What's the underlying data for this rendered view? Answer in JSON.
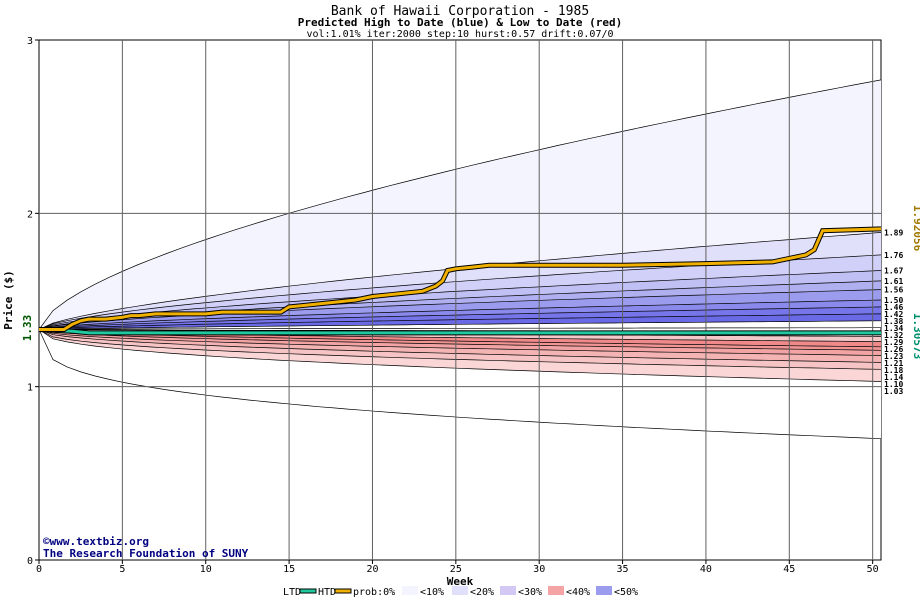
{
  "chart_data": {
    "type": "area",
    "title": "Bank of Hawaii Corporation - 1985",
    "subtitle": "Predicted High to Date (blue) &  Low to Date (red)",
    "params": "vol:1.01% iter:2000 step:10 hurst:0.57 drift:0.07/0",
    "xlabel": "Week",
    "ylabel": "Price ($)",
    "xlim": [
      0,
      50.5
    ],
    "ylim": [
      0,
      3
    ],
    "x_ticks": [
      0,
      5,
      10,
      15,
      20,
      25,
      30,
      35,
      40,
      45,
      50
    ],
    "y_ticks": [
      0,
      1,
      2,
      3
    ],
    "grid": true,
    "start_price": 1.33,
    "start_price_label": "1.33",
    "htd_last_label": "1.92056",
    "ltd_last_label": "1.30573",
    "right_labels_high": [
      "1.89",
      "1.76",
      "1.67",
      "1.61",
      "1.56",
      "1.50",
      "1.46",
      "1.42",
      "1.38",
      "1.34"
    ],
    "right_labels_low": [
      "1.32",
      "1.29",
      "1.26",
      "1.23",
      "1.21",
      "1.18",
      "1.14",
      "1.10",
      "1.03"
    ],
    "high_quantiles": [
      {
        "end": 2.77,
        "mid": 2.0
      },
      {
        "end": 1.89,
        "mid": 1.58
      },
      {
        "end": 1.76,
        "mid": 1.53
      },
      {
        "end": 1.67,
        "mid": 1.49
      },
      {
        "end": 1.61,
        "mid": 1.46
      },
      {
        "end": 1.56,
        "mid": 1.44
      },
      {
        "end": 1.5,
        "mid": 1.41
      },
      {
        "end": 1.46,
        "mid": 1.39
      },
      {
        "end": 1.42,
        "mid": 1.37
      },
      {
        "end": 1.38,
        "mid": 1.35
      },
      {
        "end": 1.34,
        "mid": 1.335
      }
    ],
    "low_quantiles": [
      {
        "end": 1.32,
        "mid": 1.325
      },
      {
        "end": 1.29,
        "mid": 1.31
      },
      {
        "end": 1.26,
        "mid": 1.295
      },
      {
        "end": 1.23,
        "mid": 1.28
      },
      {
        "end": 1.21,
        "mid": 1.265
      },
      {
        "end": 1.18,
        "mid": 1.245
      },
      {
        "end": 1.14,
        "mid": 1.22
      },
      {
        "end": 1.1,
        "mid": 1.19
      },
      {
        "end": 1.03,
        "mid": 1.15
      },
      {
        "end": 0.7,
        "mid": 0.9
      }
    ],
    "htd_series": {
      "x": [
        0,
        1.5,
        2,
        2.5,
        3,
        4,
        5,
        5.5,
        6,
        7,
        8,
        9,
        10,
        11,
        12,
        13,
        14.5,
        15,
        16,
        17,
        19,
        20,
        21,
        23,
        23.8,
        24.2,
        24.5,
        25,
        26,
        27,
        28,
        30,
        35,
        40,
        44,
        45,
        46,
        46.5,
        47,
        50.5
      ],
      "y": [
        1.33,
        1.33,
        1.36,
        1.38,
        1.39,
        1.39,
        1.4,
        1.41,
        1.41,
        1.42,
        1.42,
        1.42,
        1.42,
        1.43,
        1.43,
        1.43,
        1.43,
        1.46,
        1.47,
        1.48,
        1.5,
        1.52,
        1.53,
        1.55,
        1.58,
        1.61,
        1.67,
        1.68,
        1.69,
        1.7,
        1.7,
        1.7,
        1.7,
        1.71,
        1.72,
        1.74,
        1.76,
        1.79,
        1.9,
        1.91
      ]
    },
    "ltd_series": {
      "x": [
        0,
        2,
        3,
        5,
        10,
        20,
        30,
        40,
        50.5
      ],
      "y": [
        1.33,
        1.32,
        1.31,
        1.31,
        1.31,
        1.31,
        1.31,
        1.31,
        1.31
      ]
    },
    "credits": [
      "www.textbiz.org",
      "The Research Foundation of SUNY"
    ],
    "legend": [
      "LTD",
      "HTD",
      "prob:0%",
      "<10%",
      "<20%",
      "<30%",
      "<40%",
      "<50%"
    ],
    "colors": {
      "htd": "#f0b000",
      "ltd": "#20c8a0",
      "high_fills": [
        "#f4f4ff",
        "#e0e0fa",
        "#d0d0f8",
        "#c0c0f4",
        "#b0b0f0",
        "#9c9cee",
        "#8a8aec",
        "#7676ea",
        "#6a6ae6",
        "#ffffff"
      ],
      "low_fills": [
        "#ffffff",
        "#fad6d6",
        "#f6c4c4",
        "#f4b4b4",
        "#f2a4a4",
        "#f09494",
        "#f08a8a",
        "#f4c8c8",
        "#fff0f0"
      ]
    }
  }
}
